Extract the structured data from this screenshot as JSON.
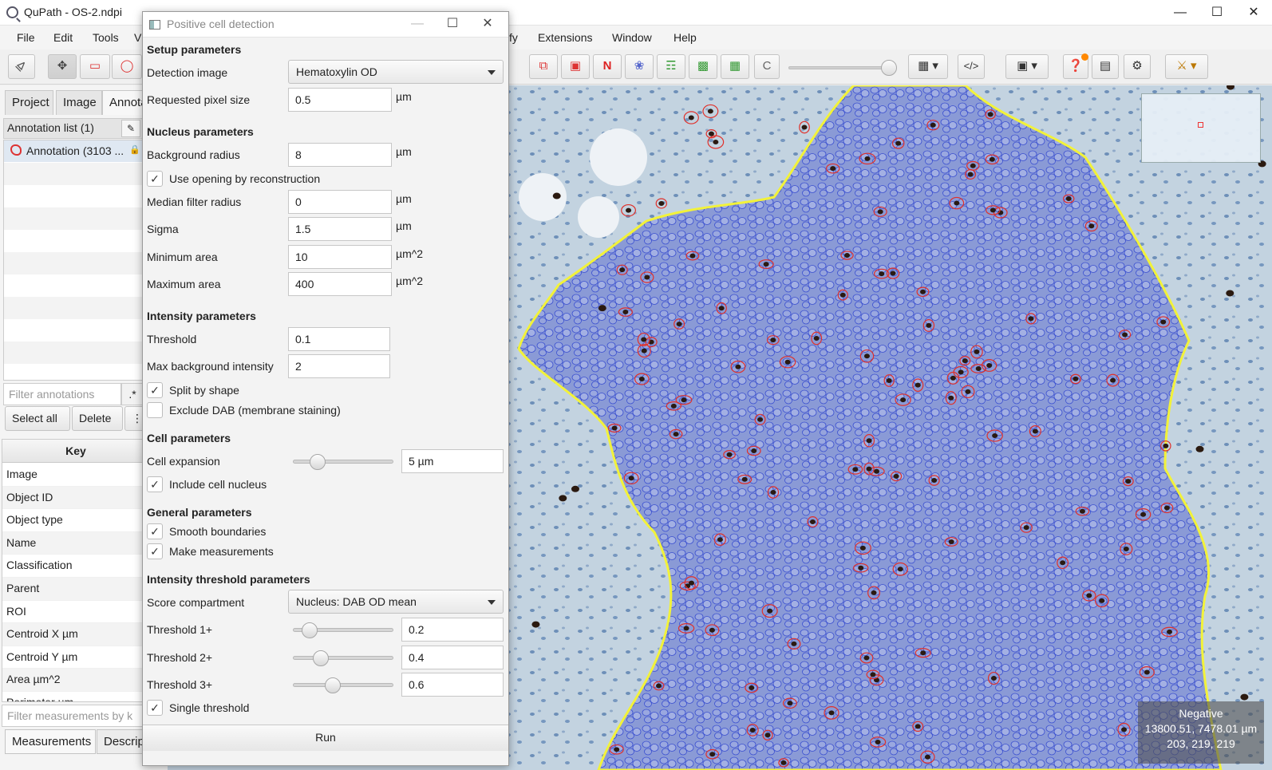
{
  "window": {
    "title": "QuPath - OS-2.ndpi"
  },
  "menu": [
    "File",
    "Edit",
    "Tools",
    "V",
    "fy",
    "Extensions",
    "Window",
    "Help"
  ],
  "left": {
    "tabs": [
      "Project",
      "Image",
      "Annota"
    ],
    "annotation_header": "Annotation list (1)",
    "annotation_item": "Annotation (3103 ...",
    "filter_placeholder": "Filter annotations",
    "regex": ".*",
    "select_all": "Select all",
    "delete": "Delete",
    "more": "⋮",
    "key_header": "Key",
    "keys": [
      "Image",
      "Object ID",
      "Object type",
      "Name",
      "Classification",
      "Parent",
      "ROI",
      "Centroid X µm",
      "Centroid Y µm",
      "Area µm^2",
      "Perimeter µm"
    ],
    "filter_measurements": "Filter measurements by k",
    "bottom_tabs": [
      "Measurements",
      "Descrip"
    ]
  },
  "toolbar": {
    "counting_label": "N",
    "c_label": "C"
  },
  "viewer": {
    "status_class": "Negative",
    "status_coords": "13800.51, 7478.01 µm",
    "status_rgb": "203, 219, 219"
  },
  "dialog": {
    "title": "Positive cell detection",
    "sections": {
      "setup": "Setup parameters",
      "nucleus": "Nucleus parameters",
      "intensity": "Intensity parameters",
      "cell": "Cell parameters",
      "general": "General parameters",
      "threshold": "Intensity threshold parameters"
    },
    "detection_image": {
      "label": "Detection image",
      "value": "Hematoxylin OD"
    },
    "pixel_size": {
      "label": "Requested pixel size",
      "value": "0.5",
      "unit": "µm"
    },
    "background_radius": {
      "label": "Background radius",
      "value": "8",
      "unit": "µm"
    },
    "use_opening": {
      "label": "Use opening by reconstruction",
      "checked": true
    },
    "median_radius": {
      "label": "Median filter radius",
      "value": "0",
      "unit": "µm"
    },
    "sigma": {
      "label": "Sigma",
      "value": "1.5",
      "unit": "µm"
    },
    "min_area": {
      "label": "Minimum area",
      "value": "10",
      "unit": "µm^2"
    },
    "max_area": {
      "label": "Maximum area",
      "value": "400",
      "unit": "µm^2"
    },
    "threshold": {
      "label": "Threshold",
      "value": "0.1"
    },
    "max_bg": {
      "label": "Max background intensity",
      "value": "2"
    },
    "split_shape": {
      "label": "Split by shape",
      "checked": true
    },
    "exclude_dab": {
      "label": "Exclude DAB (membrane staining)",
      "checked": false
    },
    "cell_expansion": {
      "label": "Cell expansion",
      "value": "5 µm",
      "slider_fraction": 0.2
    },
    "include_nucleus": {
      "label": "Include cell nucleus",
      "checked": true
    },
    "smooth": {
      "label": "Smooth boundaries",
      "checked": true
    },
    "make_meas": {
      "label": "Make measurements",
      "checked": true
    },
    "score_compartment": {
      "label": "Score compartment",
      "value": "Nucleus: DAB OD mean"
    },
    "t1": {
      "label": "Threshold 1+",
      "value": "0.2",
      "slider_fraction": 0.1
    },
    "t2": {
      "label": "Threshold 2+",
      "value": "0.4",
      "slider_fraction": 0.24
    },
    "t3": {
      "label": "Threshold 3+",
      "value": "0.6",
      "slider_fraction": 0.38
    },
    "single_threshold": {
      "label": "Single threshold",
      "checked": true
    },
    "run": "Run"
  },
  "colors": {
    "annotation_outline": "#f2f23a",
    "negative_cell": "#5a6fd8",
    "positive_cell": "#e0302a",
    "tissue": "#b8c9d8"
  }
}
